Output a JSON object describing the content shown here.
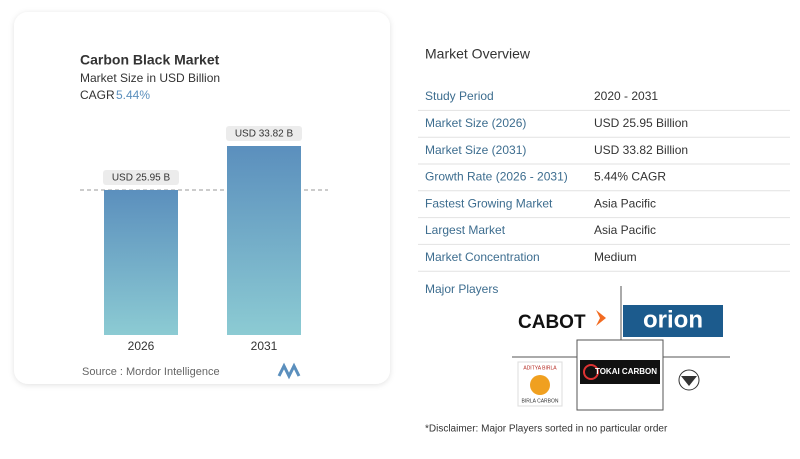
{
  "chart_data": {
    "type": "bar",
    "title": "Carbon Black Market",
    "subtitle": "Market Size in USD Billion",
    "cagr_label": "CAGR",
    "cagr_value": "5.44%",
    "categories": [
      "2026",
      "2031"
    ],
    "values": [
      25.95,
      33.82
    ],
    "value_labels": [
      "USD 25.95 B",
      "USD 33.82 B"
    ],
    "color": [
      "#5b8fbd",
      "#8ccbd3"
    ],
    "source": "Source :  Mordor Intelligence"
  },
  "overview": {
    "title": "Market Overview",
    "rows": [
      [
        "Study Period",
        "2020 - 2031"
      ],
      [
        "Market Size (2026)",
        "USD 25.95 Billion"
      ],
      [
        "Market Size (2031)",
        "USD 33.82 Billion"
      ],
      [
        "Growth Rate (2026 - 2031)",
        "5.44% CAGR"
      ],
      [
        "Fastest Growing Market",
        "Asia Pacific"
      ],
      [
        "Largest Market",
        "Asia Pacific"
      ],
      [
        "Market Concentration",
        "Medium"
      ]
    ]
  },
  "players": {
    "title": "Major Players",
    "logos": [
      "CABOT",
      "orion",
      "ADITYA BIRLA",
      "BIRLA CARBON",
      "TOKAI CARBON"
    ]
  },
  "disclaimer": "*Disclaimer: Major Players sorted in no particular order"
}
